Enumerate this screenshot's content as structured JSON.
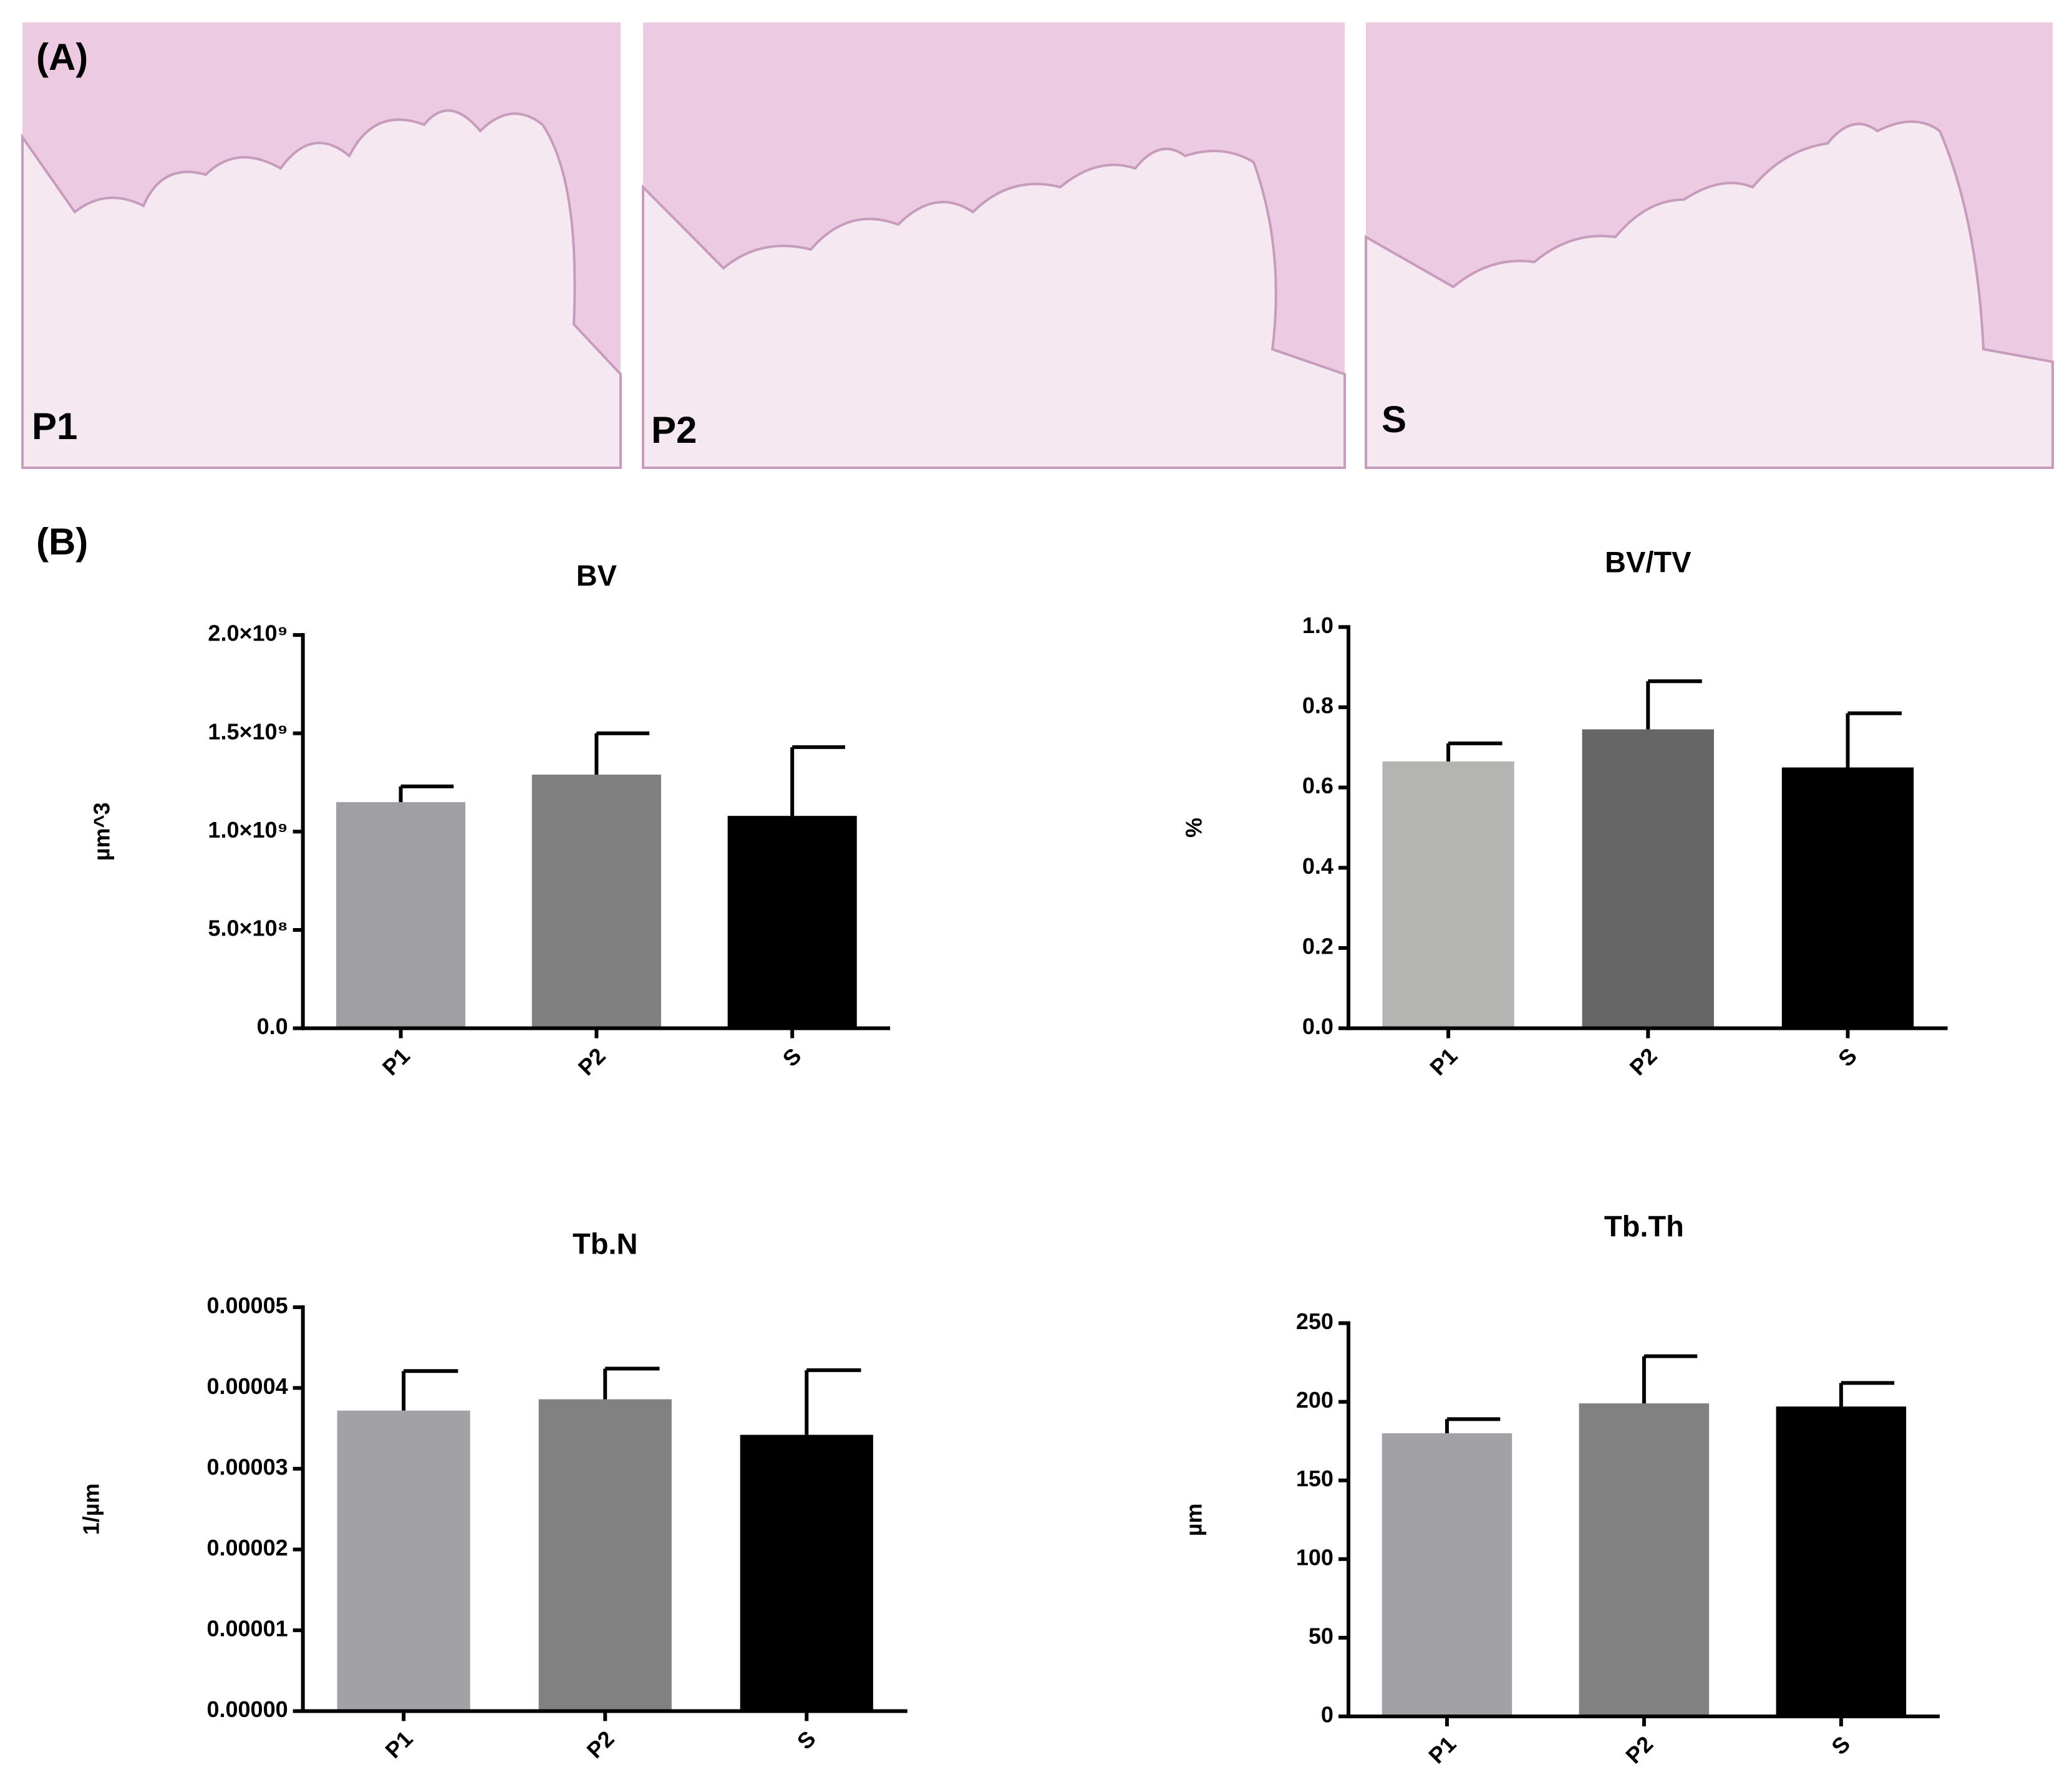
{
  "panel_a": {
    "label": "(A)",
    "images": [
      {
        "label": "P1"
      },
      {
        "label": "P2"
      },
      {
        "label": "S"
      }
    ]
  },
  "panel_b": {
    "label": "(B)"
  },
  "chart_data": [
    {
      "type": "bar",
      "title": "BV",
      "y_label": "µm^3",
      "categories": [
        "P1",
        "P2",
        "S"
      ],
      "values": [
        1150000000,
        1290000000,
        1080000000
      ],
      "errors": [
        80000000,
        210000000,
        350000000
      ],
      "colors": [
        "#a09fa3",
        "#808080",
        "#000000"
      ],
      "ylim": [
        0,
        2000000000
      ],
      "yticks": [
        {
          "value": 0,
          "label": "0.0"
        },
        {
          "value": 500000000,
          "label": "5.0×10⁸"
        },
        {
          "value": 1000000000,
          "label": "1.0×10⁹"
        },
        {
          "value": 1500000000,
          "label": "1.5×10⁹"
        },
        {
          "value": 2000000000,
          "label": "2.0×10⁹"
        }
      ]
    },
    {
      "type": "bar",
      "title": "BV/TV",
      "y_label": "%",
      "categories": [
        "P1",
        "P2",
        "S"
      ],
      "values": [
        0.665,
        0.745,
        0.65
      ],
      "errors": [
        0.045,
        0.12,
        0.135
      ],
      "colors": [
        "#b4b4b2",
        "#666666",
        "#000000"
      ],
      "ylim": [
        0,
        1
      ],
      "yticks": [
        {
          "value": 0,
          "label": "0.0"
        },
        0.2,
        0.4,
        0.6,
        0.8,
        {
          "value": 1,
          "label": "1.0"
        }
      ]
    },
    {
      "type": "bar",
      "title": "Tb.N",
      "y_label": "1/µm",
      "categories": [
        "P1",
        "P2",
        "S"
      ],
      "values": [
        3.72e-05,
        3.86e-05,
        3.42e-05
      ],
      "errors": [
        4.9e-06,
        3.8e-06,
        8e-06
      ],
      "colors": [
        "#a2a1a5",
        "#818181",
        "#000000"
      ],
      "ylim": [
        0,
        5e-05
      ],
      "yticks": [
        {
          "value": 0,
          "label": "0.00000"
        },
        1e-05,
        2e-05,
        3e-05,
        4e-05,
        5e-05
      ]
    },
    {
      "type": "bar",
      "title": "Tb.Th",
      "y_label": "µm",
      "categories": [
        "P1",
        "P2",
        "S"
      ],
      "values": [
        180,
        199,
        197
      ],
      "errors": [
        9,
        30,
        15
      ],
      "colors": [
        "#a2a1a5",
        "#818181",
        "#000000"
      ],
      "ylim": [
        0,
        250
      ],
      "yticks": [
        0,
        50,
        100,
        150,
        200,
        250
      ]
    }
  ]
}
